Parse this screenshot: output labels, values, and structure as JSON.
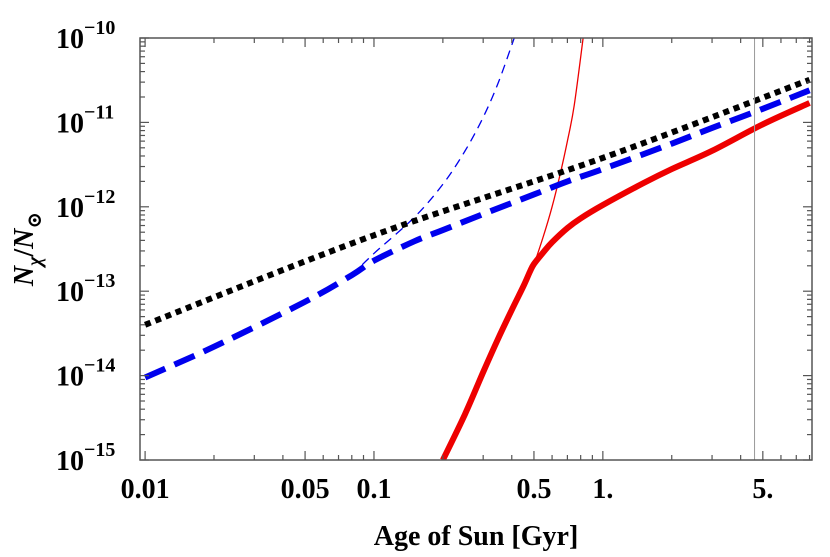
{
  "chart_data": {
    "type": "line",
    "title": "",
    "xlabel": "Age of Sun [Gyr]",
    "ylabel_parts": {
      "base": "N",
      "sub": "χ",
      "slash": "/",
      "base2": "N",
      "sub2": "⊙"
    },
    "xscale": "log",
    "yscale": "log",
    "xlim": [
      0.0095,
      8.2
    ],
    "ylim": [
      1e-15,
      1e-10
    ],
    "x_ticks": [
      {
        "value": 0.01,
        "label": "0.01"
      },
      {
        "value": 0.05,
        "label": "0.05"
      },
      {
        "value": 0.1,
        "label": "0.1"
      },
      {
        "value": 0.5,
        "label": "0.5"
      },
      {
        "value": 1.0,
        "label": "1."
      },
      {
        "value": 5.0,
        "label": "5."
      }
    ],
    "y_ticks": [
      {
        "value": 1e-15,
        "mantissa": "10",
        "exp": "−15"
      },
      {
        "value": 1e-14,
        "mantissa": "10",
        "exp": "−14"
      },
      {
        "value": 1e-13,
        "mantissa": "10",
        "exp": "−13"
      },
      {
        "value": 1e-12,
        "mantissa": "10",
        "exp": "−12"
      },
      {
        "value": 1e-11,
        "mantissa": "10",
        "exp": "−11"
      },
      {
        "value": 1e-10,
        "mantissa": "10",
        "exp": "−10"
      }
    ],
    "reference_line": {
      "x": 4.6,
      "color": "#999999"
    },
    "series": [
      {
        "name": "black-dotted",
        "color": "#000000",
        "style": "dotted",
        "width": "thick",
        "x": [
          0.01,
          0.1,
          1.0,
          8.0
        ],
        "y": [
          4e-14,
          4.6e-13,
          3.8e-12,
          3.2e-11
        ]
      },
      {
        "name": "blue-dashed-thick",
        "color": "#0000ee",
        "style": "dashed",
        "width": "thick",
        "x": [
          0.01,
          0.02,
          0.05,
          0.08,
          0.1,
          0.15,
          0.2,
          0.3,
          0.5,
          0.7,
          1.0,
          2.0,
          3.0,
          5.0,
          8.0
        ],
        "y": [
          9.5e-15,
          2.2e-14,
          7.5e-14,
          1.55e-13,
          2.3e-13,
          3.9e-13,
          5.3e-13,
          8.2e-13,
          1.4e-12,
          2e-12,
          2.8e-12,
          5.6e-12,
          8.6e-12,
          1.45e-11,
          2.4e-11
        ]
      },
      {
        "name": "blue-dashed-thin",
        "color": "#0000ee",
        "style": "dashed",
        "width": "thin",
        "x": [
          0.08,
          0.1,
          0.15,
          0.2,
          0.25,
          0.3,
          0.35,
          0.41
        ],
        "y": [
          1.55e-13,
          2.8e-13,
          7.5e-13,
          1.85e-12,
          4.6e-12,
          1.15e-11,
          3e-11,
          1e-10
        ]
      },
      {
        "name": "red-solid-thick",
        "color": "#ee0000",
        "style": "solid",
        "width": "thick",
        "x": [
          0.2,
          0.25,
          0.3,
          0.35,
          0.4,
          0.45,
          0.48,
          0.5,
          0.55,
          0.6,
          0.7,
          0.8,
          1.0,
          1.5,
          2.0,
          3.0,
          5.0,
          8.0
        ],
        "y": [
          1e-15,
          3.5e-15,
          1.1e-14,
          2.8e-14,
          6e-14,
          1.15e-13,
          1.7e-13,
          2.1e-13,
          2.9e-13,
          3.8e-13,
          5.6e-13,
          7.3e-13,
          1.05e-12,
          1.9e-12,
          2.8e-12,
          4.6e-12,
          9.5e-12,
          1.7e-11
        ]
      },
      {
        "name": "red-solid-thin",
        "color": "#ee0000",
        "style": "solid",
        "width": "thin",
        "x": [
          0.45,
          0.5,
          0.55,
          0.6,
          0.65,
          0.7,
          0.75,
          0.82
        ],
        "y": [
          1.15e-13,
          2.1e-13,
          4.5e-13,
          1e-12,
          2.4e-12,
          6e-12,
          1.6e-11,
          1e-10
        ]
      }
    ],
    "grid": false
  }
}
